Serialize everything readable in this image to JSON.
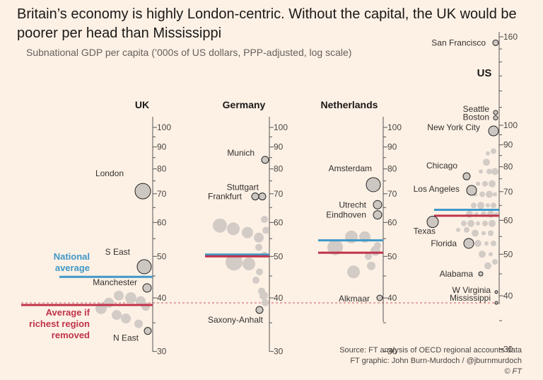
{
  "title": "Britain’s economy is highly London-centric. Without the capital, the UK would be poorer per head than Mississippi",
  "subtitle": "Subnational GDP per capita (’000s of US dollars, PPP-adjusted, log scale)",
  "source": [
    "Source: FT analysis of OECD regional accounts data",
    "FT graphic: John Burn-Murdoch / @jburnmurdoch",
    "© FT"
  ],
  "colors": {
    "background": "#fdf1e5",
    "national_average": "#3f98c8",
    "without_richest": "#c0334a",
    "bubble": "#d2cbc6",
    "highlight": "#cdc7c2",
    "axis": "#555"
  },
  "chart_data": {
    "type": "scatter",
    "scale": "log",
    "ticks": [
      30,
      40,
      50,
      60,
      70,
      80,
      90,
      100,
      160
    ],
    "mississippi_reference": 38.5,
    "panels": [
      {
        "name": "UK",
        "ylim": [
          30,
          105
        ],
        "national_average": 44.8,
        "average_without_richest": 38.5,
        "extra_labels": {
          "national_average": [
            "National",
            "average"
          ],
          "average_without_richest": [
            "Average if",
            "richest region",
            "removed"
          ]
        },
        "labeled": [
          {
            "name": "London",
            "value": 71,
            "size": 11
          },
          {
            "name": "S East",
            "value": 47.3,
            "size": 10
          },
          {
            "name": "Manchester",
            "value": 42.2,
            "size": 6
          },
          {
            "name": "N East",
            "value": 33.5,
            "size": 5
          }
        ],
        "others": [
          {
            "value": 40.5,
            "size": 7
          },
          {
            "value": 40.0,
            "size": 8
          },
          {
            "value": 39.3,
            "size": 7
          },
          {
            "value": 39.0,
            "size": 7
          },
          {
            "value": 37.8,
            "size": 8
          },
          {
            "value": 36.5,
            "size": 7
          },
          {
            "value": 35.8,
            "size": 7
          },
          {
            "value": 34.8,
            "size": 6
          },
          {
            "value": 38.2,
            "size": 6
          }
        ]
      },
      {
        "name": "Germany",
        "ylim": [
          30,
          105
        ],
        "national_average": 50.5,
        "average_without_richest": 50.0,
        "labeled": [
          {
            "name": "Munich",
            "value": 84,
            "size": 5
          },
          {
            "name": "Stuttgart",
            "value": 69,
            "size": 5
          },
          {
            "name": "Frankfurt",
            "value": 69,
            "size": 5
          },
          {
            "name": "Saxony-Anhalt",
            "value": 37.5,
            "size": 5
          }
        ],
        "others": [
          {
            "value": 59,
            "size": 10
          },
          {
            "value": 58,
            "size": 9
          },
          {
            "value": 56.8,
            "size": 8
          },
          {
            "value": 55.3,
            "size": 7
          },
          {
            "value": 48.5,
            "size": 12
          },
          {
            "value": 48.0,
            "size": 9
          },
          {
            "value": 44.0,
            "size": 5
          },
          {
            "value": 40.5,
            "size": 6
          },
          {
            "value": 39.0,
            "size": 5
          },
          {
            "value": 61.0,
            "size": 5
          },
          {
            "value": 57.5,
            "size": 5
          },
          {
            "value": 52.5,
            "size": 5
          },
          {
            "value": 50.5,
            "size": 4
          },
          {
            "value": 46.0,
            "size": 5
          },
          {
            "value": 41.5,
            "size": 5
          }
        ]
      },
      {
        "name": "Netherlands",
        "ylim": [
          30,
          105
        ],
        "national_average": 54.5,
        "average_without_richest": 51.0,
        "labeled": [
          {
            "name": "Amsterdam",
            "value": 73.5,
            "size": 10
          },
          {
            "name": "Utrecht",
            "value": 66,
            "size": 6
          },
          {
            "name": "Eindhoven",
            "value": 62.5,
            "size": 6
          },
          {
            "name": "Alkmaar",
            "value": 40.0,
            "size": 4
          }
        ],
        "others": [
          {
            "value": 52.5,
            "size": 11
          },
          {
            "value": 55.5,
            "size": 9
          },
          {
            "value": 55.5,
            "size": 8
          },
          {
            "value": 51.5,
            "size": 7
          },
          {
            "value": 46.0,
            "size": 9
          },
          {
            "value": 47.5,
            "size": 6
          },
          {
            "value": 53.0,
            "size": 5
          },
          {
            "value": 50.0,
            "size": 5
          }
        ]
      },
      {
        "name": "US",
        "ylim": [
          30,
          165
        ],
        "national_average": 63.5,
        "average_without_richest": 61.5,
        "labeled": [
          {
            "name": "San Francisco",
            "value": 155,
            "size": 4
          },
          {
            "name": "Seattle",
            "value": 107,
            "size": 3
          },
          {
            "name": "Boston",
            "value": 104,
            "size": 3
          },
          {
            "name": "New York City",
            "value": 97,
            "size": 7
          },
          {
            "name": "Chicago",
            "value": 76,
            "size": 5
          },
          {
            "name": "Los Angeles",
            "value": 70.5,
            "size": 7
          },
          {
            "name": "Texas",
            "value": 59.5,
            "size": 8
          },
          {
            "name": "Florida",
            "value": 53,
            "size": 7
          },
          {
            "name": "Alabama",
            "value": 45,
            "size": 3
          },
          {
            "name": "W Virginia",
            "value": 40.8,
            "size": 2
          },
          {
            "name": "Mississippi",
            "value": 38.5,
            "size": 2
          }
        ]
      }
    ]
  }
}
